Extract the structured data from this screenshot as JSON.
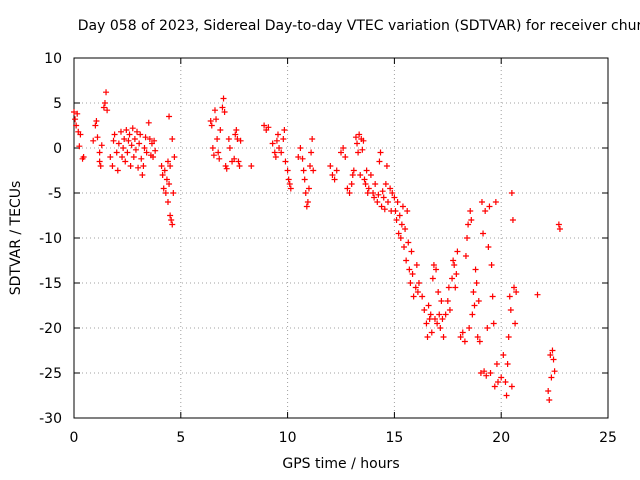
{
  "chart_data": {
    "type": "scatter",
    "title": "Day 058 of 2023, Sidereal Day-to-day VTEC variation (SDTVAR) for receiver chur",
    "xlabel": "GPS time / hours",
    "ylabel": "SDTVAR / TECUs",
    "xlim": [
      0,
      25
    ],
    "ylim": [
      -30,
      10
    ],
    "xticks": [
      0,
      5,
      10,
      15,
      20,
      25
    ],
    "yticks": [
      -30,
      -25,
      -20,
      -15,
      -10,
      -5,
      0,
      5,
      10
    ],
    "grid": true,
    "marker": "+",
    "series": [
      {
        "name": "SDTVAR",
        "color": "#ff0000",
        "points": [
          [
            0.0,
            4.0
          ],
          [
            0.05,
            3.2
          ],
          [
            0.1,
            2.5
          ],
          [
            0.15,
            3.8
          ],
          [
            0.2,
            1.8
          ],
          [
            0.25,
            0.2
          ],
          [
            0.3,
            1.5
          ],
          [
            0.4,
            -1.2
          ],
          [
            0.45,
            -1.0
          ],
          [
            0.9,
            0.8
          ],
          [
            1.0,
            2.5
          ],
          [
            1.05,
            3.0
          ],
          [
            1.1,
            1.2
          ],
          [
            1.2,
            -0.5
          ],
          [
            1.2,
            -1.5
          ],
          [
            1.25,
            -2.0
          ],
          [
            1.3,
            0.3
          ],
          [
            1.4,
            4.5
          ],
          [
            1.45,
            5.0
          ],
          [
            1.5,
            6.2
          ],
          [
            1.55,
            4.2
          ],
          [
            1.7,
            -1.0
          ],
          [
            1.8,
            -2.0
          ],
          [
            1.85,
            0.8
          ],
          [
            1.9,
            1.5
          ],
          [
            2.0,
            -0.5
          ],
          [
            2.05,
            -2.5
          ],
          [
            2.1,
            0.5
          ],
          [
            2.2,
            1.8
          ],
          [
            2.25,
            -1.0
          ],
          [
            2.3,
            0.0
          ],
          [
            2.35,
            1.0
          ],
          [
            2.4,
            -1.5
          ],
          [
            2.45,
            2.0
          ],
          [
            2.5,
            -0.5
          ],
          [
            2.55,
            0.8
          ],
          [
            2.6,
            1.5
          ],
          [
            2.65,
            -2.0
          ],
          [
            2.7,
            0.3
          ],
          [
            2.75,
            2.2
          ],
          [
            2.8,
            -1.0
          ],
          [
            2.85,
            1.0
          ],
          [
            2.9,
            -0.2
          ],
          [
            2.95,
            1.8
          ],
          [
            3.0,
            -2.2
          ],
          [
            3.05,
            0.5
          ],
          [
            3.1,
            1.5
          ],
          [
            3.15,
            -1.2
          ],
          [
            3.2,
            -3.0
          ],
          [
            3.25,
            -2.0
          ],
          [
            3.3,
            0.0
          ],
          [
            3.35,
            1.2
          ],
          [
            3.4,
            -0.5
          ],
          [
            3.5,
            2.8
          ],
          [
            3.55,
            1.0
          ],
          [
            3.6,
            -0.8
          ],
          [
            3.65,
            0.5
          ],
          [
            3.7,
            -1.0
          ],
          [
            3.75,
            0.8
          ],
          [
            3.8,
            -0.3
          ],
          [
            4.1,
            -2.0
          ],
          [
            4.15,
            -3.0
          ],
          [
            4.2,
            -4.5
          ],
          [
            4.25,
            -2.5
          ],
          [
            4.3,
            -5.0
          ],
          [
            4.35,
            -3.5
          ],
          [
            4.4,
            -1.5
          ],
          [
            4.4,
            -6.0
          ],
          [
            4.45,
            -4.0
          ],
          [
            4.45,
            3.5
          ],
          [
            4.5,
            -2.0
          ],
          [
            4.5,
            -7.5
          ],
          [
            4.55,
            -8.0
          ],
          [
            4.6,
            -8.5
          ],
          [
            4.65,
            -5.0
          ],
          [
            4.6,
            1.0
          ],
          [
            4.7,
            -1.0
          ],
          [
            6.4,
            3.0
          ],
          [
            6.45,
            2.5
          ],
          [
            6.5,
            0.0
          ],
          [
            6.55,
            -0.8
          ],
          [
            6.6,
            4.2
          ],
          [
            6.65,
            3.2
          ],
          [
            6.7,
            1.0
          ],
          [
            6.75,
            -0.5
          ],
          [
            6.8,
            -1.2
          ],
          [
            6.85,
            2.0
          ],
          [
            6.95,
            4.5
          ],
          [
            7.0,
            5.5
          ],
          [
            7.05,
            4.0
          ],
          [
            7.1,
            -2.0
          ],
          [
            7.15,
            -2.3
          ],
          [
            7.25,
            1.0
          ],
          [
            7.3,
            0.0
          ],
          [
            7.4,
            -1.5
          ],
          [
            7.5,
            -1.2
          ],
          [
            7.55,
            1.5
          ],
          [
            7.6,
            2.0
          ],
          [
            7.65,
            1.0
          ],
          [
            7.7,
            -1.5
          ],
          [
            7.75,
            -2.0
          ],
          [
            7.8,
            0.8
          ],
          [
            8.3,
            -2.0
          ],
          [
            8.9,
            2.5
          ],
          [
            9.0,
            2.0
          ],
          [
            9.1,
            2.3
          ],
          [
            9.3,
            0.5
          ],
          [
            9.4,
            -0.5
          ],
          [
            9.45,
            -1.0
          ],
          [
            9.5,
            0.8
          ],
          [
            9.55,
            1.5
          ],
          [
            9.6,
            0.0
          ],
          [
            9.7,
            -0.5
          ],
          [
            9.8,
            1.0
          ],
          [
            9.85,
            2.0
          ],
          [
            9.9,
            -1.5
          ],
          [
            10.0,
            -2.5
          ],
          [
            10.05,
            -3.5
          ],
          [
            10.1,
            -4.0
          ],
          [
            10.15,
            -4.5
          ],
          [
            10.5,
            -1.0
          ],
          [
            10.6,
            0.0
          ],
          [
            10.7,
            -1.2
          ],
          [
            10.75,
            -2.5
          ],
          [
            10.8,
            -3.5
          ],
          [
            10.85,
            -5.0
          ],
          [
            10.9,
            -6.5
          ],
          [
            10.95,
            -6.0
          ],
          [
            11.0,
            -4.5
          ],
          [
            11.05,
            -2.0
          ],
          [
            11.1,
            -0.5
          ],
          [
            11.15,
            1.0
          ],
          [
            11.2,
            -2.5
          ],
          [
            12.0,
            -2.0
          ],
          [
            12.1,
            -3.0
          ],
          [
            12.2,
            -3.5
          ],
          [
            12.3,
            -2.5
          ],
          [
            12.5,
            -0.5
          ],
          [
            12.6,
            0.0
          ],
          [
            12.7,
            -1.0
          ],
          [
            12.8,
            -4.5
          ],
          [
            12.9,
            -5.0
          ],
          [
            13.0,
            -4.0
          ],
          [
            13.05,
            -3.0
          ],
          [
            13.1,
            -2.5
          ],
          [
            13.2,
            1.2
          ],
          [
            13.25,
            0.5
          ],
          [
            13.3,
            -0.5
          ],
          [
            13.35,
            1.5
          ],
          [
            13.4,
            -3.0
          ],
          [
            13.45,
            1.0
          ],
          [
            13.5,
            -0.2
          ],
          [
            13.55,
            0.8
          ],
          [
            13.6,
            -3.5
          ],
          [
            13.65,
            -4.0
          ],
          [
            13.7,
            -2.5
          ],
          [
            13.75,
            -5.0
          ],
          [
            13.8,
            -4.5
          ],
          [
            13.9,
            -3.0
          ],
          [
            14.0,
            -5.0
          ],
          [
            14.05,
            -5.5
          ],
          [
            14.1,
            -4.0
          ],
          [
            14.2,
            -6.0
          ],
          [
            14.25,
            -5.2
          ],
          [
            14.3,
            -1.5
          ],
          [
            14.35,
            -0.5
          ],
          [
            14.4,
            -6.5
          ],
          [
            14.45,
            -4.8
          ],
          [
            14.5,
            -5.5
          ],
          [
            14.55,
            -6.8
          ],
          [
            14.6,
            -4.0
          ],
          [
            14.65,
            -2.0
          ],
          [
            14.7,
            -6.0
          ],
          [
            14.8,
            -4.5
          ],
          [
            14.85,
            -7.0
          ],
          [
            14.9,
            -5.0
          ],
          [
            15.0,
            -5.5
          ],
          [
            15.05,
            -7.0
          ],
          [
            15.1,
            -8.0
          ],
          [
            15.15,
            -6.0
          ],
          [
            15.2,
            -9.5
          ],
          [
            15.25,
            -7.5
          ],
          [
            15.3,
            -10.0
          ],
          [
            15.35,
            -8.5
          ],
          [
            15.4,
            -6.5
          ],
          [
            15.45,
            -11.0
          ],
          [
            15.5,
            -9.0
          ],
          [
            15.55,
            -12.5
          ],
          [
            15.6,
            -7.0
          ],
          [
            15.65,
            -10.5
          ],
          [
            15.7,
            -13.5
          ],
          [
            15.75,
            -15.0
          ],
          [
            15.8,
            -11.5
          ],
          [
            15.85,
            -14.0
          ],
          [
            15.9,
            -16.5
          ],
          [
            16.0,
            -15.5
          ],
          [
            16.05,
            -13.0
          ],
          [
            16.1,
            -16.0
          ],
          [
            16.15,
            -15.0
          ],
          [
            16.3,
            -16.5
          ],
          [
            16.4,
            -18.0
          ],
          [
            16.5,
            -19.5
          ],
          [
            16.55,
            -21.0
          ],
          [
            16.6,
            -17.5
          ],
          [
            16.65,
            -19.0
          ],
          [
            16.7,
            -18.5
          ],
          [
            16.75,
            -20.5
          ],
          [
            16.8,
            -14.5
          ],
          [
            16.85,
            -13.0
          ],
          [
            16.9,
            -19.0
          ],
          [
            16.95,
            -13.5
          ],
          [
            17.0,
            -19.5
          ],
          [
            17.05,
            -16.0
          ],
          [
            17.1,
            -18.5
          ],
          [
            17.15,
            -20.0
          ],
          [
            17.2,
            -17.0
          ],
          [
            17.25,
            -19.0
          ],
          [
            17.3,
            -21.0
          ],
          [
            17.4,
            -18.5
          ],
          [
            17.5,
            -17.0
          ],
          [
            17.55,
            -15.5
          ],
          [
            17.6,
            -18.0
          ],
          [
            17.7,
            -14.5
          ],
          [
            17.75,
            -12.5
          ],
          [
            17.8,
            -13.0
          ],
          [
            17.85,
            -15.5
          ],
          [
            17.9,
            -14.0
          ],
          [
            17.95,
            -11.5
          ],
          [
            18.1,
            -21.0
          ],
          [
            18.2,
            -20.5
          ],
          [
            18.3,
            -21.5
          ],
          [
            18.35,
            -12.0
          ],
          [
            18.4,
            -10.0
          ],
          [
            18.45,
            -8.5
          ],
          [
            18.5,
            -20.0
          ],
          [
            18.55,
            -7.0
          ],
          [
            18.6,
            -8.0
          ],
          [
            18.65,
            -18.5
          ],
          [
            18.7,
            -16.0
          ],
          [
            18.75,
            -17.5
          ],
          [
            18.8,
            -13.5
          ],
          [
            18.85,
            -15.0
          ],
          [
            18.9,
            -21.0
          ],
          [
            18.95,
            -17.0
          ],
          [
            19.0,
            -21.5
          ],
          [
            19.05,
            -25.0
          ],
          [
            19.1,
            -6.0
          ],
          [
            19.15,
            -9.5
          ],
          [
            19.2,
            -24.8
          ],
          [
            19.25,
            -7.0
          ],
          [
            19.3,
            -25.3
          ],
          [
            19.35,
            -20.0
          ],
          [
            19.4,
            -11.0
          ],
          [
            19.45,
            -6.5
          ],
          [
            19.5,
            -25.0
          ],
          [
            19.55,
            -13.0
          ],
          [
            19.6,
            -16.5
          ],
          [
            19.65,
            -19.5
          ],
          [
            19.7,
            -26.5
          ],
          [
            19.75,
            -6.0
          ],
          [
            19.8,
            -24.0
          ],
          [
            19.85,
            -26.0
          ],
          [
            20.0,
            -25.5
          ],
          [
            20.1,
            -23.0
          ],
          [
            20.2,
            -26.0
          ],
          [
            20.25,
            -27.5
          ],
          [
            20.3,
            -24.0
          ],
          [
            20.35,
            -21.0
          ],
          [
            20.4,
            -16.5
          ],
          [
            20.45,
            -18.0
          ],
          [
            20.5,
            -26.5
          ],
          [
            20.5,
            -5.0
          ],
          [
            20.55,
            -8.0
          ],
          [
            20.6,
            -15.5
          ],
          [
            20.65,
            -19.5
          ],
          [
            20.7,
            -16.0
          ],
          [
            21.7,
            -16.3
          ],
          [
            22.2,
            -27.0
          ],
          [
            22.25,
            -28.0
          ],
          [
            22.3,
            -23.0
          ],
          [
            22.35,
            -25.5
          ],
          [
            22.4,
            -22.5
          ],
          [
            22.45,
            -23.5
          ],
          [
            22.5,
            -24.8
          ],
          [
            22.7,
            -8.5
          ],
          [
            22.75,
            -9.0
          ]
        ]
      }
    ]
  }
}
